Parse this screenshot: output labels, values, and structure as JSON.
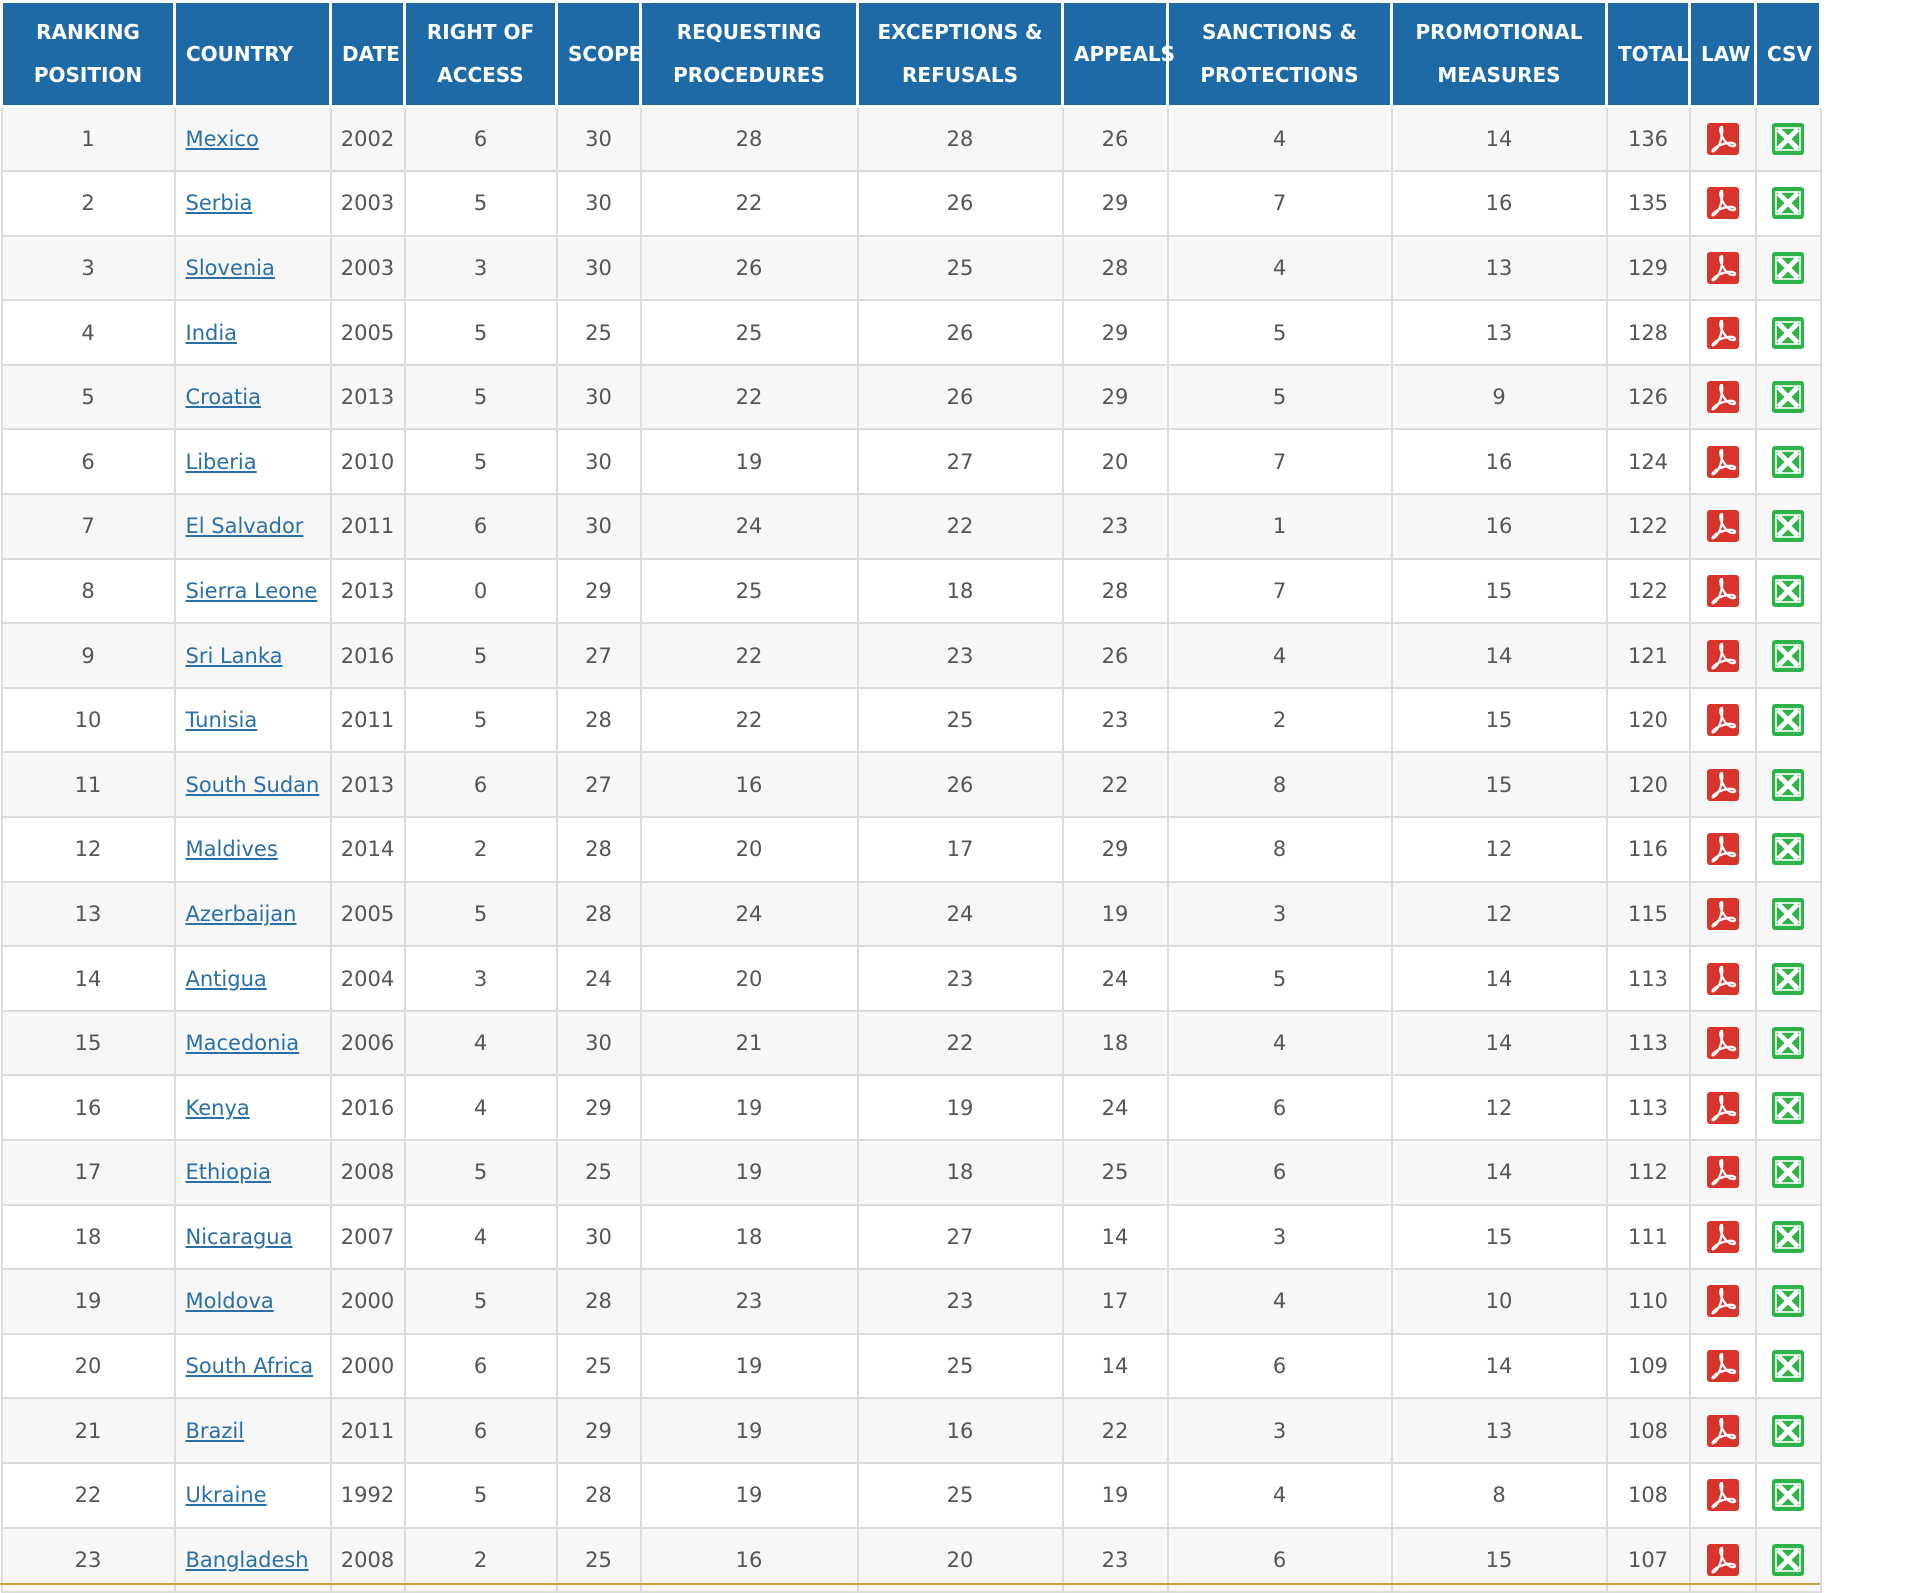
{
  "colors": {
    "header_bg": "#1e6aa7",
    "link": "#2b6fa8",
    "pdf_icon": "#d9342b",
    "csv_icon": "#2eb24a"
  },
  "columns": [
    {
      "key": "rank",
      "lines": [
        "RANKING",
        "POSITION"
      ]
    },
    {
      "key": "country",
      "lines": [
        "COUNTRY"
      ]
    },
    {
      "key": "date",
      "lines": [
        "DATE"
      ]
    },
    {
      "key": "right_of_access",
      "lines": [
        "RIGHT OF",
        "ACCESS"
      ]
    },
    {
      "key": "scope",
      "lines": [
        "SCOPE"
      ]
    },
    {
      "key": "requesting_procedures",
      "lines": [
        "REQUESTING",
        "PROCEDURES"
      ]
    },
    {
      "key": "exceptions_refusals",
      "lines": [
        "EXCEPTIONS &",
        "REFUSALS"
      ]
    },
    {
      "key": "appeals",
      "lines": [
        "APPEALS"
      ]
    },
    {
      "key": "sanctions_protections",
      "lines": [
        "SANCTIONS &",
        "PROTECTIONS"
      ]
    },
    {
      "key": "promotional_measures",
      "lines": [
        "PROMOTIONAL",
        "MEASURES"
      ]
    },
    {
      "key": "total",
      "lines": [
        "TOTAL"
      ]
    },
    {
      "key": "law",
      "lines": [
        "LAW"
      ],
      "icon": "pdf-icon"
    },
    {
      "key": "csv",
      "lines": [
        "CSV"
      ],
      "icon": "excel-icon"
    }
  ],
  "rows": [
    {
      "rank": "1",
      "country": "Mexico",
      "date": "2002",
      "right_of_access": "6",
      "scope": "30",
      "requesting_procedures": "28",
      "exceptions_refusals": "28",
      "appeals": "26",
      "sanctions_protections": "4",
      "promotional_measures": "14",
      "total": "136"
    },
    {
      "rank": "2",
      "country": "Serbia",
      "date": "2003",
      "right_of_access": "5",
      "scope": "30",
      "requesting_procedures": "22",
      "exceptions_refusals": "26",
      "appeals": "29",
      "sanctions_protections": "7",
      "promotional_measures": "16",
      "total": "135"
    },
    {
      "rank": "3",
      "country": "Slovenia",
      "date": "2003",
      "right_of_access": "3",
      "scope": "30",
      "requesting_procedures": "26",
      "exceptions_refusals": "25",
      "appeals": "28",
      "sanctions_protections": "4",
      "promotional_measures": "13",
      "total": "129"
    },
    {
      "rank": "4",
      "country": "India",
      "date": "2005",
      "right_of_access": "5",
      "scope": "25",
      "requesting_procedures": "25",
      "exceptions_refusals": "26",
      "appeals": "29",
      "sanctions_protections": "5",
      "promotional_measures": "13",
      "total": "128"
    },
    {
      "rank": "5",
      "country": "Croatia",
      "date": "2013",
      "right_of_access": "5",
      "scope": "30",
      "requesting_procedures": "22",
      "exceptions_refusals": "26",
      "appeals": "29",
      "sanctions_protections": "5",
      "promotional_measures": "9",
      "total": "126"
    },
    {
      "rank": "6",
      "country": "Liberia",
      "date": "2010",
      "right_of_access": "5",
      "scope": "30",
      "requesting_procedures": "19",
      "exceptions_refusals": "27",
      "appeals": "20",
      "sanctions_protections": "7",
      "promotional_measures": "16",
      "total": "124"
    },
    {
      "rank": "7",
      "country": "El Salvador",
      "date": "2011",
      "right_of_access": "6",
      "scope": "30",
      "requesting_procedures": "24",
      "exceptions_refusals": "22",
      "appeals": "23",
      "sanctions_protections": "1",
      "promotional_measures": "16",
      "total": "122"
    },
    {
      "rank": "8",
      "country": "Sierra Leone",
      "date": "2013",
      "right_of_access": "0",
      "scope": "29",
      "requesting_procedures": "25",
      "exceptions_refusals": "18",
      "appeals": "28",
      "sanctions_protections": "7",
      "promotional_measures": "15",
      "total": "122"
    },
    {
      "rank": "9",
      "country": "Sri Lanka",
      "date": "2016",
      "right_of_access": "5",
      "scope": "27",
      "requesting_procedures": "22",
      "exceptions_refusals": "23",
      "appeals": "26",
      "sanctions_protections": "4",
      "promotional_measures": "14",
      "total": "121"
    },
    {
      "rank": "10",
      "country": "Tunisia",
      "date": "2011",
      "right_of_access": "5",
      "scope": "28",
      "requesting_procedures": "22",
      "exceptions_refusals": "25",
      "appeals": "23",
      "sanctions_protections": "2",
      "promotional_measures": "15",
      "total": "120"
    },
    {
      "rank": "11",
      "country": "South Sudan",
      "date": "2013",
      "right_of_access": "6",
      "scope": "27",
      "requesting_procedures": "16",
      "exceptions_refusals": "26",
      "appeals": "22",
      "sanctions_protections": "8",
      "promotional_measures": "15",
      "total": "120"
    },
    {
      "rank": "12",
      "country": "Maldives",
      "date": "2014",
      "right_of_access": "2",
      "scope": "28",
      "requesting_procedures": "20",
      "exceptions_refusals": "17",
      "appeals": "29",
      "sanctions_protections": "8",
      "promotional_measures": "12",
      "total": "116"
    },
    {
      "rank": "13",
      "country": "Azerbaijan",
      "date": "2005",
      "right_of_access": "5",
      "scope": "28",
      "requesting_procedures": "24",
      "exceptions_refusals": "24",
      "appeals": "19",
      "sanctions_protections": "3",
      "promotional_measures": "12",
      "total": "115"
    },
    {
      "rank": "14",
      "country": "Antigua",
      "date": "2004",
      "right_of_access": "3",
      "scope": "24",
      "requesting_procedures": "20",
      "exceptions_refusals": "23",
      "appeals": "24",
      "sanctions_protections": "5",
      "promotional_measures": "14",
      "total": "113"
    },
    {
      "rank": "15",
      "country": "Macedonia",
      "date": "2006",
      "right_of_access": "4",
      "scope": "30",
      "requesting_procedures": "21",
      "exceptions_refusals": "22",
      "appeals": "18",
      "sanctions_protections": "4",
      "promotional_measures": "14",
      "total": "113"
    },
    {
      "rank": "16",
      "country": "Kenya",
      "date": "2016",
      "right_of_access": "4",
      "scope": "29",
      "requesting_procedures": "19",
      "exceptions_refusals": "19",
      "appeals": "24",
      "sanctions_protections": "6",
      "promotional_measures": "12",
      "total": "113"
    },
    {
      "rank": "17",
      "country": "Ethiopia",
      "date": "2008",
      "right_of_access": "5",
      "scope": "25",
      "requesting_procedures": "19",
      "exceptions_refusals": "18",
      "appeals": "25",
      "sanctions_protections": "6",
      "promotional_measures": "14",
      "total": "112"
    },
    {
      "rank": "18",
      "country": "Nicaragua",
      "date": "2007",
      "right_of_access": "4",
      "scope": "30",
      "requesting_procedures": "18",
      "exceptions_refusals": "27",
      "appeals": "14",
      "sanctions_protections": "3",
      "promotional_measures": "15",
      "total": "111"
    },
    {
      "rank": "19",
      "country": "Moldova",
      "date": "2000",
      "right_of_access": "5",
      "scope": "28",
      "requesting_procedures": "23",
      "exceptions_refusals": "23",
      "appeals": "17",
      "sanctions_protections": "4",
      "promotional_measures": "10",
      "total": "110"
    },
    {
      "rank": "20",
      "country": "South Africa",
      "date": "2000",
      "right_of_access": "6",
      "scope": "25",
      "requesting_procedures": "19",
      "exceptions_refusals": "25",
      "appeals": "14",
      "sanctions_protections": "6",
      "promotional_measures": "14",
      "total": "109"
    },
    {
      "rank": "21",
      "country": "Brazil",
      "date": "2011",
      "right_of_access": "6",
      "scope": "29",
      "requesting_procedures": "19",
      "exceptions_refusals": "16",
      "appeals": "22",
      "sanctions_protections": "3",
      "promotional_measures": "13",
      "total": "108"
    },
    {
      "rank": "22",
      "country": "Ukraine",
      "date": "1992",
      "right_of_access": "5",
      "scope": "28",
      "requesting_procedures": "19",
      "exceptions_refusals": "25",
      "appeals": "19",
      "sanctions_protections": "4",
      "promotional_measures": "8",
      "total": "108"
    },
    {
      "rank": "23",
      "country": "Bangladesh",
      "date": "2008",
      "right_of_access": "2",
      "scope": "25",
      "requesting_procedures": "16",
      "exceptions_refusals": "20",
      "appeals": "23",
      "sanctions_protections": "6",
      "promotional_measures": "15",
      "total": "107"
    }
  ]
}
